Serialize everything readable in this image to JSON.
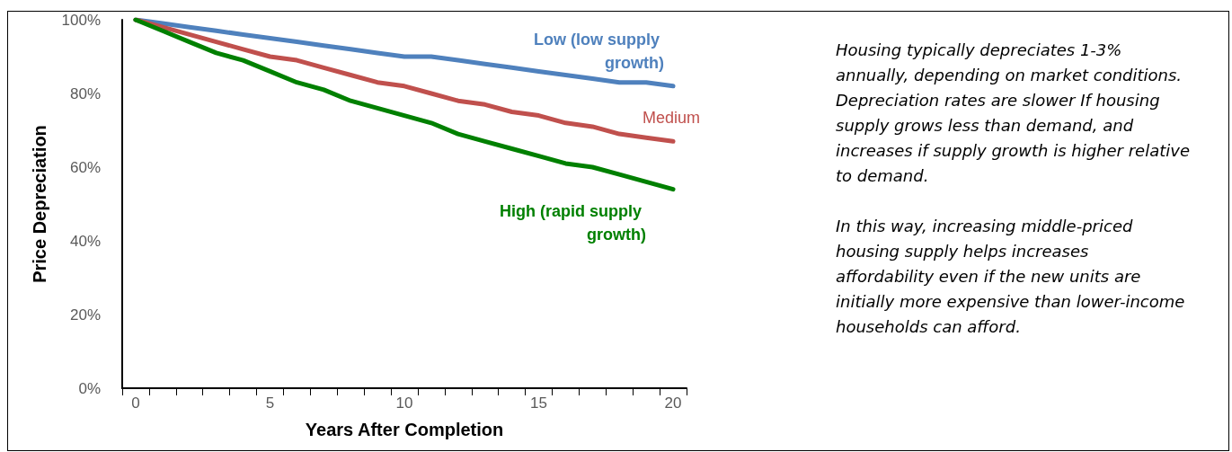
{
  "chart_data": {
    "type": "line",
    "xlabel": "Years After Completion",
    "ylabel": "Price Depreciation",
    "categories": [
      "0",
      null,
      null,
      null,
      null,
      "5",
      null,
      null,
      null,
      null,
      "10",
      null,
      null,
      null,
      null,
      "15",
      null,
      null,
      null,
      null,
      "20"
    ],
    "series": [
      {
        "name": "Low (low supply growth)",
        "color": "#4f81bd",
        "values": [
          100,
          99,
          98,
          97,
          96,
          95,
          94,
          93,
          92,
          91,
          90,
          90,
          89,
          88,
          87,
          86,
          85,
          84,
          83,
          83,
          82
        ]
      },
      {
        "name": "Medium",
        "color": "#c0504d",
        "values": [
          100,
          98,
          96,
          94,
          92,
          90,
          89,
          87,
          85,
          83,
          82,
          80,
          78,
          77,
          75,
          74,
          72,
          71,
          69,
          68,
          67
        ]
      },
      {
        "name": "High (rapid supply growth)",
        "color": "#008000",
        "values": [
          100,
          97,
          94,
          91,
          89,
          86,
          83,
          81,
          78,
          76,
          74,
          72,
          69,
          67,
          65,
          63,
          61,
          60,
          58,
          56,
          54
        ]
      }
    ],
    "ylim": [
      0,
      100
    ],
    "yticks": [
      {
        "value": 0,
        "label": "0%"
      },
      {
        "value": 20,
        "label": "20%"
      },
      {
        "value": 40,
        "label": "40%"
      },
      {
        "value": 60,
        "label": "60%"
      },
      {
        "value": 80,
        "label": "80%"
      },
      {
        "value": 100,
        "label": "100%"
      }
    ],
    "grid": false,
    "legend": false,
    "marker": "none",
    "line_style": "solid",
    "annotations": [
      "Housing typically depreciates 1-3% annually, depending on market conditions. Depreciation rates are slower If housing supply grows less than demand, and increases if supply growth is higher relative to demand.",
      "In this way, increasing middle-priced housing supply helps increases affordability even if the new units are initially more expensive than lower-income households can afford."
    ]
  }
}
